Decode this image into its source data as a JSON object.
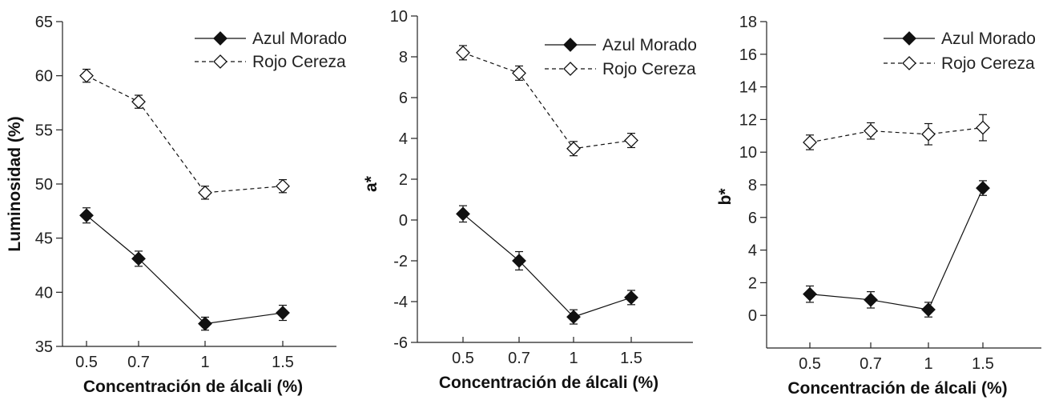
{
  "chart_data": [
    {
      "type": "line",
      "categories": [
        "0.5",
        "0.7",
        "1",
        "1.5"
      ],
      "xlabel": "Concentración de álcali (%)",
      "ylabel": "Luminosidad (%)",
      "ylim": [
        35,
        65
      ],
      "yticks": [
        35,
        40,
        45,
        50,
        55,
        60,
        65
      ],
      "ytick_labels": [
        "35",
        "40",
        "45",
        "50",
        "55",
        "60",
        "65"
      ],
      "legend": "top-right",
      "series": [
        {
          "name": "Azul Morado",
          "marker": "filled-diamond",
          "line": "solid",
          "values": [
            47.1,
            43.1,
            37.1,
            38.1
          ],
          "errors": [
            0.7,
            0.7,
            0.6,
            0.7
          ]
        },
        {
          "name": "Rojo Cereza",
          "marker": "open-diamond",
          "line": "dashed",
          "values": [
            60.0,
            57.6,
            49.2,
            49.8
          ],
          "errors": [
            0.6,
            0.6,
            0.6,
            0.6
          ]
        }
      ]
    },
    {
      "type": "line",
      "categories": [
        "0.5",
        "0.7",
        "1",
        "1.5"
      ],
      "xlabel": "Concentración de álcali (%)",
      "ylabel": "a*",
      "ylim": [
        -6,
        10
      ],
      "yticks": [
        -6,
        -4,
        -2,
        0,
        2,
        4,
        6,
        8,
        10
      ],
      "ytick_labels": [
        "-6",
        "-4",
        "-2",
        "0",
        "2",
        "4",
        "6",
        "8",
        "10"
      ],
      "legend": "top-right",
      "series": [
        {
          "name": "Azul Morado",
          "marker": "filled-diamond",
          "line": "solid",
          "values": [
            0.3,
            -2.0,
            -4.75,
            -3.8
          ],
          "errors": [
            0.4,
            0.45,
            0.35,
            0.35
          ]
        },
        {
          "name": "Rojo Cereza",
          "marker": "open-diamond",
          "line": "dashed",
          "values": [
            8.2,
            7.2,
            3.5,
            3.9
          ],
          "errors": [
            0.35,
            0.35,
            0.35,
            0.35
          ]
        }
      ]
    },
    {
      "type": "line",
      "categories": [
        "0.5",
        "0.7",
        "1",
        "1.5"
      ],
      "xlabel": "Concentración de álcali (%)",
      "ylabel": "b*",
      "ylim": [
        -2,
        18
      ],
      "yticks": [
        0,
        2,
        4,
        6,
        8,
        10,
        12,
        14,
        16,
        18
      ],
      "ytick_labels": [
        "0",
        "2",
        "4",
        "6",
        "8",
        "10",
        "12",
        "14",
        "16",
        "18"
      ],
      "legend": "top-right",
      "series": [
        {
          "name": "Azul Morado",
          "marker": "filled-diamond",
          "line": "solid",
          "values": [
            1.3,
            0.95,
            0.35,
            7.8
          ],
          "errors": [
            0.5,
            0.5,
            0.45,
            0.45
          ]
        },
        {
          "name": "Rojo Cereza",
          "marker": "open-diamond",
          "line": "dashed",
          "values": [
            10.6,
            11.3,
            11.1,
            11.5
          ],
          "errors": [
            0.45,
            0.5,
            0.65,
            0.8
          ]
        }
      ]
    }
  ]
}
